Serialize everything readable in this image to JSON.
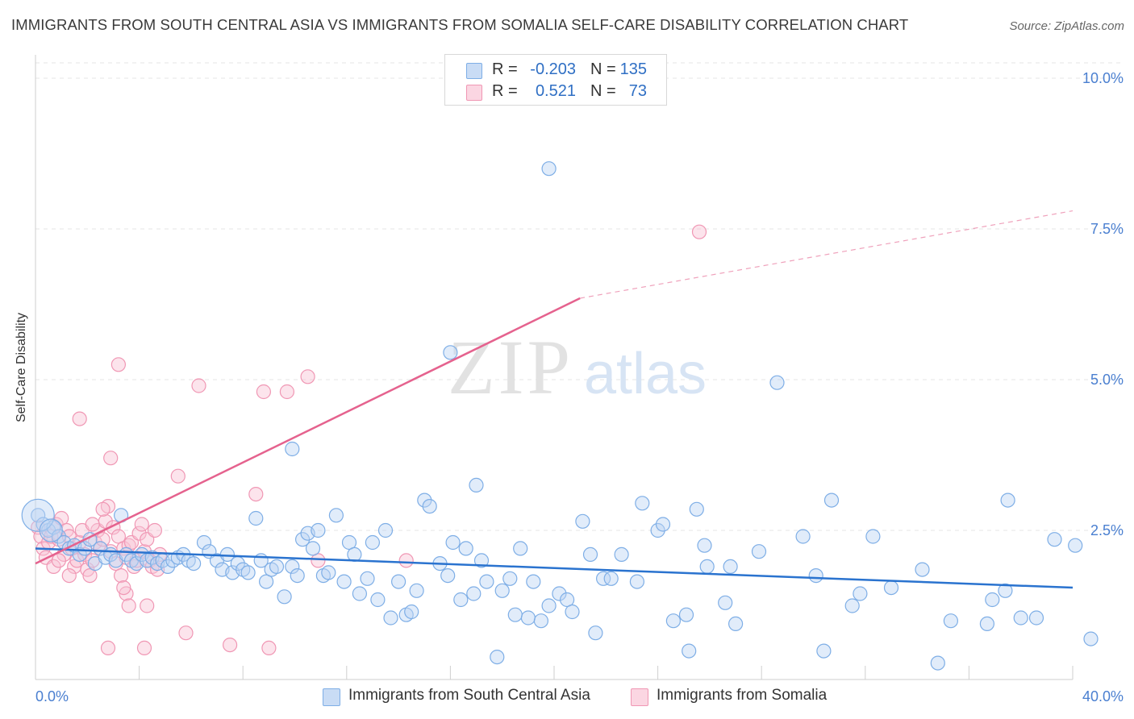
{
  "title": "IMMIGRANTS FROM SOUTH CENTRAL ASIA VS IMMIGRANTS FROM SOMALIA SELF-CARE DISABILITY CORRELATION CHART",
  "source": "Source: ZipAtlas.com",
  "watermark": {
    "zip": "ZIP",
    "atlas": "atlas"
  },
  "legend": {
    "rows": [
      {
        "r_label": "R =",
        "r_value": "-0.203",
        "n_label": "N =",
        "n_value": "135",
        "color": "#a9c8ee"
      },
      {
        "r_label": "R =",
        "r_value": "0.521",
        "n_label": "N =",
        "n_value": "73",
        "color": "#f6b6ca"
      }
    ]
  },
  "colors": {
    "blue": "#7eaee6",
    "blue_line": "#2a73cf",
    "pink": "#f097b4",
    "pink_line": "#e5628e",
    "tick": "#4a7fd0"
  },
  "chart_data": {
    "type": "scatter",
    "title": "IMMIGRANTS FROM SOUTH CENTRAL ASIA VS IMMIGRANTS FROM SOMALIA SELF-CARE DISABILITY CORRELATION CHART",
    "xlabel": "",
    "ylabel": "Self-Care Disability",
    "xlim": [
      0,
      40
    ],
    "ylim": [
      0,
      10.5
    ],
    "x_ticks": [
      {
        "value": 0,
        "label": "0.0%"
      },
      {
        "value": 40,
        "label": "40.0%"
      }
    ],
    "y_ticks": [
      {
        "value": 2.5,
        "label": "2.5%"
      },
      {
        "value": 5.0,
        "label": "5.0%"
      },
      {
        "value": 7.5,
        "label": "7.5%"
      },
      {
        "value": 10.0,
        "label": "10.0%"
      }
    ],
    "grid": true,
    "legend_position": "top-center",
    "series": [
      {
        "name": "Immigrants from South Central Asia",
        "color": "#7eaee6",
        "trend": {
          "x0": 0,
          "y0": 2.2,
          "x1": 40,
          "y1": 1.55
        },
        "points": [
          [
            0.1,
            2.75
          ],
          [
            0.3,
            2.6
          ],
          [
            0.5,
            2.5
          ],
          [
            0.7,
            2.55
          ],
          [
            0.9,
            2.4
          ],
          [
            1.1,
            2.3
          ],
          [
            1.3,
            2.2
          ],
          [
            1.5,
            2.25
          ],
          [
            1.7,
            2.1
          ],
          [
            1.9,
            2.2
          ],
          [
            2.1,
            2.35
          ],
          [
            2.3,
            1.95
          ],
          [
            2.5,
            2.2
          ],
          [
            2.7,
            2.05
          ],
          [
            2.9,
            2.1
          ],
          [
            3.1,
            2.0
          ],
          [
            3.3,
            2.75
          ],
          [
            3.5,
            2.1
          ],
          [
            3.7,
            2.0
          ],
          [
            3.9,
            1.95
          ],
          [
            4.1,
            2.1
          ],
          [
            4.3,
            2.0
          ],
          [
            4.5,
            2.05
          ],
          [
            4.7,
            1.95
          ],
          [
            4.9,
            2.0
          ],
          [
            5.1,
            1.9
          ],
          [
            5.3,
            2.0
          ],
          [
            5.5,
            2.05
          ],
          [
            5.7,
            2.1
          ],
          [
            5.9,
            2.0
          ],
          [
            6.1,
            1.95
          ],
          [
            6.5,
            2.3
          ],
          [
            6.7,
            2.15
          ],
          [
            7.0,
            2.0
          ],
          [
            7.2,
            1.85
          ],
          [
            7.4,
            2.1
          ],
          [
            7.6,
            1.8
          ],
          [
            7.8,
            1.95
          ],
          [
            8.0,
            1.85
          ],
          [
            8.2,
            1.8
          ],
          [
            8.5,
            2.7
          ],
          [
            8.7,
            2.0
          ],
          [
            8.9,
            1.65
          ],
          [
            9.1,
            1.85
          ],
          [
            9.3,
            1.9
          ],
          [
            9.6,
            1.4
          ],
          [
            9.9,
            1.9
          ],
          [
            10.1,
            1.75
          ],
          [
            10.3,
            2.35
          ],
          [
            10.5,
            2.45
          ],
          [
            10.7,
            2.2
          ],
          [
            10.9,
            2.5
          ],
          [
            11.1,
            1.75
          ],
          [
            11.3,
            1.8
          ],
          [
            11.6,
            2.75
          ],
          [
            11.9,
            1.65
          ],
          [
            12.1,
            2.3
          ],
          [
            12.3,
            2.1
          ],
          [
            12.5,
            1.45
          ],
          [
            12.8,
            1.7
          ],
          [
            13.0,
            2.3
          ],
          [
            13.2,
            1.35
          ],
          [
            13.5,
            2.5
          ],
          [
            13.7,
            1.05
          ],
          [
            14.0,
            1.65
          ],
          [
            14.3,
            1.1
          ],
          [
            14.5,
            1.15
          ],
          [
            14.7,
            1.5
          ],
          [
            15.0,
            3.0
          ],
          [
            15.2,
            2.9
          ],
          [
            15.6,
            1.95
          ],
          [
            15.9,
            1.75
          ],
          [
            16.1,
            2.3
          ],
          [
            16.4,
            1.35
          ],
          [
            16.6,
            2.2
          ],
          [
            16.9,
            1.45
          ],
          [
            17.2,
            2.0
          ],
          [
            17.4,
            1.65
          ],
          [
            17.8,
            0.4
          ],
          [
            18.0,
            1.5
          ],
          [
            18.3,
            1.7
          ],
          [
            18.5,
            1.1
          ],
          [
            18.7,
            2.2
          ],
          [
            19.0,
            1.05
          ],
          [
            19.2,
            1.65
          ],
          [
            19.5,
            1.0
          ],
          [
            19.8,
            1.25
          ],
          [
            20.2,
            1.45
          ],
          [
            20.5,
            1.35
          ],
          [
            20.7,
            1.15
          ],
          [
            21.1,
            2.65
          ],
          [
            21.4,
            2.1
          ],
          [
            21.6,
            0.8
          ],
          [
            21.9,
            1.7
          ],
          [
            22.2,
            1.7
          ],
          [
            22.6,
            2.1
          ],
          [
            23.2,
            1.65
          ],
          [
            23.4,
            2.95
          ],
          [
            24.0,
            2.5
          ],
          [
            24.2,
            2.6
          ],
          [
            24.6,
            1.0
          ],
          [
            25.1,
            1.1
          ],
          [
            25.2,
            0.5
          ],
          [
            25.5,
            2.85
          ],
          [
            25.8,
            2.25
          ],
          [
            25.9,
            1.9
          ],
          [
            26.6,
            1.3
          ],
          [
            26.8,
            1.9
          ],
          [
            27.0,
            0.95
          ],
          [
            27.9,
            2.15
          ],
          [
            28.6,
            4.95
          ],
          [
            29.6,
            2.4
          ],
          [
            30.1,
            1.75
          ],
          [
            30.4,
            0.5
          ],
          [
            30.7,
            3.0
          ],
          [
            31.5,
            1.25
          ],
          [
            31.8,
            1.45
          ],
          [
            32.3,
            2.4
          ],
          [
            33.0,
            1.55
          ],
          [
            34.2,
            1.85
          ],
          [
            34.8,
            0.3
          ],
          [
            35.3,
            1.0
          ],
          [
            36.7,
            0.95
          ],
          [
            36.9,
            1.35
          ],
          [
            37.4,
            1.5
          ],
          [
            37.5,
            3.0
          ],
          [
            38.0,
            1.05
          ],
          [
            38.6,
            1.05
          ],
          [
            39.3,
            2.35
          ],
          [
            40.1,
            2.25
          ],
          [
            40.7,
            0.7
          ],
          [
            16.0,
            5.45
          ],
          [
            19.8,
            8.5
          ],
          [
            9.9,
            3.85
          ],
          [
            17.0,
            3.25
          ]
        ]
      },
      {
        "name": "Immigrants from Somalia",
        "color": "#f097b4",
        "trend": {
          "x0": 0,
          "y0": 1.95,
          "x1": 21,
          "y1": 6.35,
          "dashed_to_x": 40,
          "dashed_to_y": 7.8
        },
        "points": [
          [
            0.1,
            2.55
          ],
          [
            0.2,
            2.4
          ],
          [
            0.3,
            2.2
          ],
          [
            0.4,
            2.05
          ],
          [
            0.5,
            2.3
          ],
          [
            0.6,
            2.4
          ],
          [
            0.7,
            1.9
          ],
          [
            0.8,
            2.6
          ],
          [
            0.9,
            2.35
          ],
          [
            1.0,
            2.7
          ],
          [
            1.1,
            2.1
          ],
          [
            1.2,
            2.5
          ],
          [
            1.3,
            2.4
          ],
          [
            1.4,
            2.2
          ],
          [
            1.5,
            1.9
          ],
          [
            1.6,
            2.0
          ],
          [
            1.7,
            2.3
          ],
          [
            1.8,
            2.5
          ],
          [
            1.9,
            2.1
          ],
          [
            2.0,
            1.85
          ],
          [
            2.1,
            1.75
          ],
          [
            2.2,
            2.0
          ],
          [
            2.3,
            2.3
          ],
          [
            2.4,
            2.5
          ],
          [
            2.5,
            2.2
          ],
          [
            2.6,
            2.35
          ],
          [
            2.7,
            2.65
          ],
          [
            2.8,
            2.9
          ],
          [
            2.9,
            2.15
          ],
          [
            3.0,
            2.55
          ],
          [
            3.1,
            1.95
          ],
          [
            3.2,
            2.4
          ],
          [
            3.3,
            1.75
          ],
          [
            3.4,
            2.2
          ],
          [
            3.5,
            2.05
          ],
          [
            3.6,
            2.25
          ],
          [
            3.7,
            2.3
          ],
          [
            3.8,
            1.9
          ],
          [
            3.9,
            2.0
          ],
          [
            4.0,
            2.45
          ],
          [
            4.1,
            2.6
          ],
          [
            4.2,
            2.15
          ],
          [
            4.3,
            2.35
          ],
          [
            4.4,
            2.0
          ],
          [
            4.5,
            1.9
          ],
          [
            4.6,
            2.5
          ],
          [
            4.7,
            1.85
          ],
          [
            4.8,
            2.1
          ],
          [
            1.7,
            4.35
          ],
          [
            2.9,
            3.7
          ],
          [
            3.2,
            5.25
          ],
          [
            5.5,
            3.4
          ],
          [
            6.3,
            4.9
          ],
          [
            8.8,
            4.8
          ],
          [
            9.7,
            4.8
          ],
          [
            10.5,
            5.05
          ],
          [
            8.5,
            3.1
          ],
          [
            7.5,
            0.6
          ],
          [
            9.0,
            0.55
          ],
          [
            10.9,
            2.0
          ],
          [
            14.3,
            2.0
          ],
          [
            5.8,
            0.8
          ],
          [
            2.8,
            0.55
          ],
          [
            4.2,
            0.55
          ],
          [
            3.5,
            1.45
          ],
          [
            4.3,
            1.25
          ],
          [
            3.6,
            1.25
          ],
          [
            2.2,
            2.6
          ],
          [
            1.3,
            1.75
          ],
          [
            0.9,
            2.0
          ],
          [
            25.6,
            7.45
          ],
          [
            3.4,
            1.55
          ],
          [
            2.6,
            2.85
          ]
        ]
      }
    ]
  },
  "bottom_legend": [
    {
      "label": "Immigrants from South Central Asia",
      "color": "#a9c8ee"
    },
    {
      "label": "Immigrants from Somalia",
      "color": "#f6b6ca"
    }
  ]
}
